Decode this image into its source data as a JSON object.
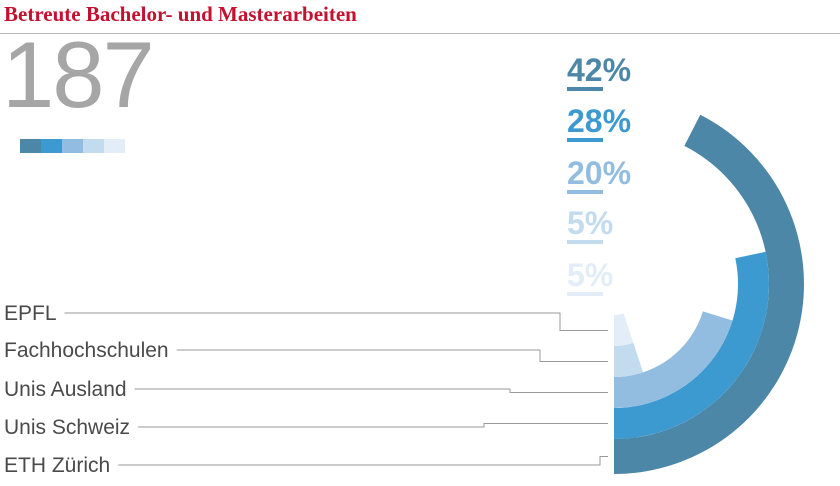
{
  "header": {
    "title": "Betreute Bachelor- und Masterarbeiten"
  },
  "total": {
    "value": "187"
  },
  "colors": {
    "title": "#c4112f",
    "total": "#a6a6a6",
    "series": [
      "#4d87a8",
      "#3d9ad1",
      "#93bde0",
      "#c3dbef",
      "#e2edf7"
    ]
  },
  "chart_data": {
    "type": "radial bar",
    "title": "Betreute Bachelor- und Masterarbeiten",
    "total": 187,
    "unit": "%",
    "categories": [
      "ETH Zürich",
      "Unis Schweiz",
      "Unis Ausland",
      "Fachhochschulen",
      "EPFL"
    ],
    "values": [
      42,
      28,
      20,
      5,
      5
    ],
    "value_labels": [
      "42%",
      "28%",
      "20%",
      "5%",
      "5%"
    ],
    "colors": [
      "#4d87a8",
      "#3d9ad1",
      "#93bde0",
      "#c3dbef",
      "#e2edf7"
    ],
    "legend": "top-right"
  }
}
